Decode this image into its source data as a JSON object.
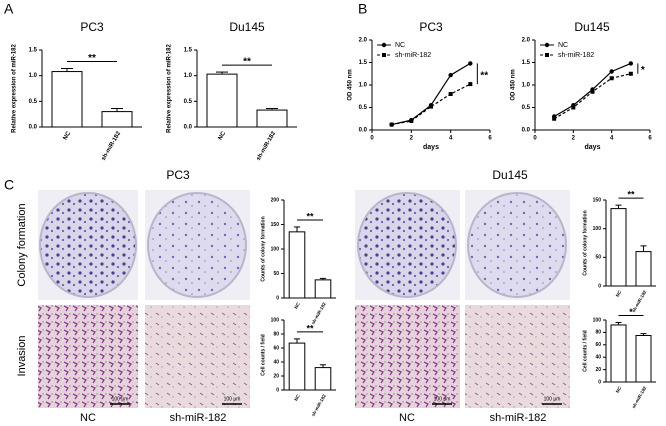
{
  "figure": {
    "panels": [
      "A",
      "B",
      "C"
    ],
    "cell_lines": [
      "PC3",
      "Du145"
    ],
    "rows": [
      "Colony formation",
      "Invasion"
    ],
    "columns": [
      "NC",
      "sh-miR-182"
    ],
    "scale_bar": "100 μm"
  },
  "chart_data": [
    {
      "type": "bar",
      "title": "PC3",
      "ylabel": "Relative expression of miR-182",
      "categories": [
        "NC",
        "sh-miR-182"
      ],
      "values": [
        1.08,
        0.3
      ],
      "errors": [
        0.06,
        0.06
      ],
      "color": "#ffffff",
      "ylim": [
        0,
        1.5
      ],
      "yticks": [
        {
          "value": 0,
          "label": "0.0"
        },
        0.5,
        {
          "value": 1,
          "label": "1.0"
        },
        1.5
      ],
      "annotation": "**"
    },
    {
      "type": "bar",
      "title": "Du145",
      "ylabel": "Relative expression of miR-182",
      "categories": [
        "NC",
        "sh-miR-182"
      ],
      "values": [
        1.03,
        0.33
      ],
      "errors": [
        0.04,
        0.03
      ],
      "color": "#ffffff",
      "ylim": [
        0,
        1.5
      ],
      "yticks": [
        {
          "value": 0,
          "label": "0.0"
        },
        0.5,
        {
          "value": 1,
          "label": "1.0"
        },
        1.5
      ],
      "annotation": "**"
    },
    {
      "type": "line",
      "title": "PC3",
      "xlabel": "days",
      "ylabel": "OD 450 nm",
      "x": [
        1,
        2,
        3,
        4,
        5
      ],
      "series": [
        {
          "name": "NC",
          "color": "#000000",
          "marker": "circle",
          "dashed": false,
          "values": [
            0.12,
            0.22,
            0.55,
            1.22,
            1.48
          ]
        },
        {
          "name": "sh-miR-182",
          "color": "#000000",
          "marker": "square",
          "dashed": true,
          "values": [
            0.12,
            0.2,
            0.52,
            0.8,
            1.02
          ]
        }
      ],
      "xlim": [
        0,
        6
      ],
      "xticks": [
        0,
        2,
        4,
        6
      ],
      "ylim": [
        0,
        2
      ],
      "yticks": [
        {
          "value": 0,
          "label": "0.0"
        },
        0.5,
        {
          "value": 1,
          "label": "1.0"
        },
        1.5,
        {
          "value": 2,
          "label": "2.0"
        }
      ],
      "annotation": "**"
    },
    {
      "type": "line",
      "title": "Du145",
      "xlabel": "days",
      "ylabel": "OD 450 nm",
      "x": [
        1,
        2,
        3,
        4,
        5
      ],
      "series": [
        {
          "name": "NC",
          "color": "#000000",
          "marker": "circle",
          "dashed": false,
          "values": [
            0.3,
            0.55,
            0.9,
            1.3,
            1.48
          ]
        },
        {
          "name": "sh-miR-182",
          "color": "#000000",
          "marker": "square",
          "dashed": true,
          "values": [
            0.25,
            0.5,
            0.85,
            1.15,
            1.25
          ]
        }
      ],
      "xlim": [
        0,
        6
      ],
      "xticks": [
        0,
        2,
        4,
        6
      ],
      "ylim": [
        0,
        2
      ],
      "yticks": [
        {
          "value": 0,
          "label": "0.0"
        },
        0.5,
        {
          "value": 1,
          "label": "1.0"
        },
        1.5,
        {
          "value": 2,
          "label": "2.0"
        }
      ],
      "annotation": "*"
    },
    {
      "type": "bar",
      "ylabel": "Counts of colony formation",
      "categories": [
        "NC",
        "sh-miR-182"
      ],
      "values": [
        135,
        37
      ],
      "errors": [
        10,
        3
      ],
      "color": "#ffffff",
      "ylim": [
        0,
        200
      ],
      "yticks": [
        0,
        50,
        100,
        150,
        200
      ],
      "annotation": "**"
    },
    {
      "type": "bar",
      "ylabel": "Cell counts / field",
      "categories": [
        "NC",
        "sh-miR-182"
      ],
      "values": [
        67,
        32
      ],
      "errors": [
        6,
        4
      ],
      "color": "#ffffff",
      "ylim": [
        0,
        100
      ],
      "yticks": [
        0,
        20,
        40,
        60,
        80,
        100
      ],
      "annotation": "**"
    },
    {
      "type": "bar",
      "ylabel": "Counts of colony formation",
      "categories": [
        "NC",
        "sh-miR-182"
      ],
      "values": [
        135,
        60
      ],
      "errors": [
        6,
        10
      ],
      "color": "#ffffff",
      "ylim": [
        0,
        150
      ],
      "yticks": [
        0,
        50,
        100,
        150
      ],
      "annotation": "**"
    },
    {
      "type": "bar",
      "ylabel": "Cell counts / field",
      "categories": [
        "NC",
        "sh-miR-182"
      ],
      "values": [
        92,
        75
      ],
      "errors": [
        4,
        3
      ],
      "color": "#ffffff",
      "ylim": [
        0,
        100
      ],
      "yticks": [
        0,
        20,
        40,
        60,
        80,
        100
      ],
      "annotation": "*"
    }
  ]
}
